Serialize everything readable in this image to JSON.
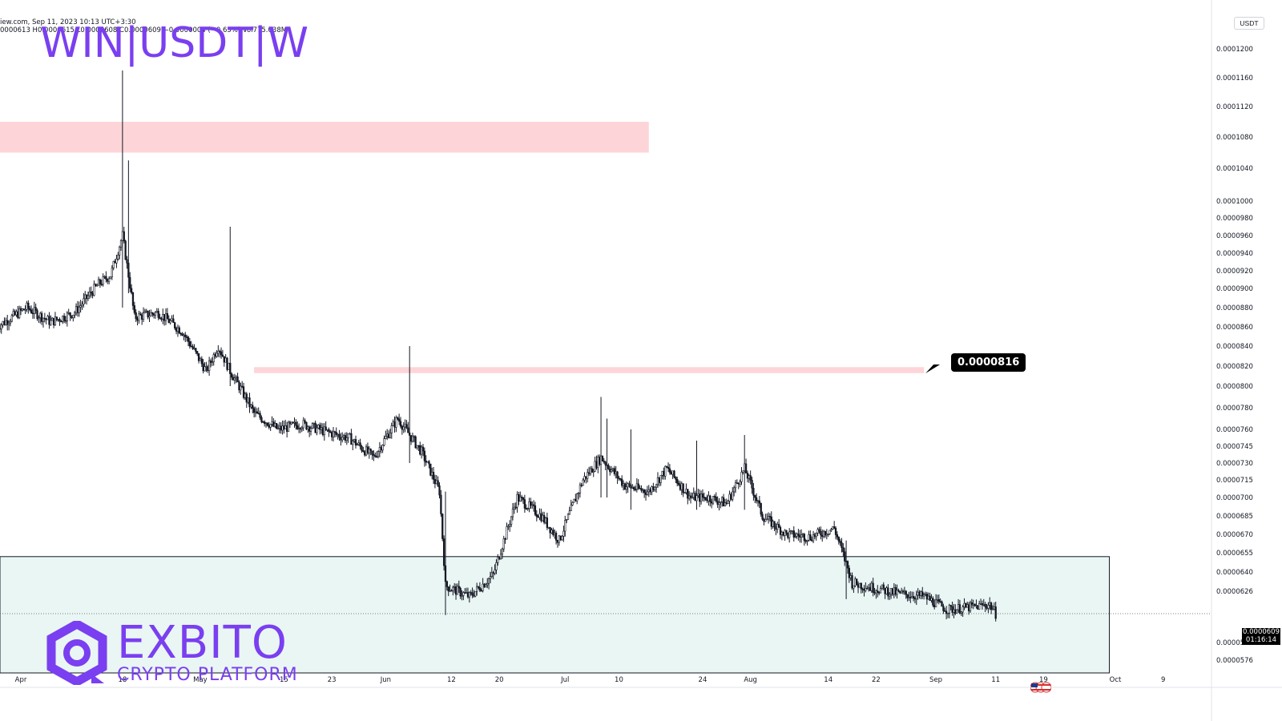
{
  "chart_data": {
    "type": "candlestick",
    "title": "WIN|USDT|W",
    "ohlc_header": "0000613  H0.0000615  L0.0000608  C0.0000609  −0.0000004 (−0.65%)  Vol775.038M",
    "source_header": "iew.com, Sep 11, 2023 10:13 UTC+3:30",
    "currency": "USDT",
    "y_tick_labels": [
      "0.0001200",
      "0.0001160",
      "0.0001120",
      "0.0001080",
      "0.0001040",
      "0.0001000",
      "0.0000980",
      "0.0000960",
      "0.0000940",
      "0.0000920",
      "0.0000900",
      "0.0000880",
      "0.0000860",
      "0.0000840",
      "0.0000820",
      "0.0000800",
      "0.0000780",
      "0.0000760",
      "0.0000745",
      "0.0000730",
      "0.0000715",
      "0.0000700",
      "0.0000685",
      "0.0000670",
      "0.0000655",
      "0.0000640",
      "0.0000626",
      "0.0000588",
      "0.0000576"
    ],
    "x_tick_labels": [
      "Apr",
      "10",
      "18",
      "May",
      "15",
      "23",
      "Jun",
      "12",
      "20",
      "Jul",
      "10",
      "24",
      "Aug",
      "14",
      "22",
      "Sep",
      "11",
      "19",
      "Oct",
      "9"
    ],
    "zones": [
      {
        "kind": "resistance",
        "y_from": 0.000106,
        "y_to": 0.00011,
        "x_from": "Mar 28",
        "x_to": "Jul 15",
        "color": "#fdd5d8"
      },
      {
        "kind": "resistance",
        "y_from": 8.13e-05,
        "y_to": 8.19e-05,
        "x_from": "May 10",
        "x_to": "Aug 30",
        "color": "#fdd5d8"
      },
      {
        "kind": "support",
        "y_from": 5.6e-05,
        "y_to": 6.52e-05,
        "x_from": "Mar 28",
        "x_to": "Sep 30",
        "color": "#e9f6f4"
      }
    ],
    "target_label": "0.0000816",
    "last_price": "0.0000609",
    "countdown": "01:16:14",
    "series": [
      {
        "anchors": [
          [
            "Mar 28",
            8.6e-05
          ],
          [
            "Apr 2",
            8.8e-05
          ],
          [
            "Apr 6",
            8.65e-05
          ],
          [
            "Apr 10",
            8.75e-05
          ],
          [
            "Apr 14",
            9.05e-05
          ],
          [
            "Apr 16",
            9.15e-05
          ],
          [
            "Apr 18",
            9.6e-05
          ],
          [
            "Apr 20",
            8.7e-05
          ],
          [
            "Apr 24",
            8.75e-05
          ],
          [
            "Apr 28",
            8.55e-05
          ],
          [
            "May 2",
            8.15e-05
          ],
          [
            "May 4",
            8.4e-05
          ],
          [
            "May 6",
            8.15e-05
          ],
          [
            "May 10",
            7.75e-05
          ],
          [
            "May 14",
            7.6e-05
          ],
          [
            "May 18",
            7.65e-05
          ],
          [
            "May 22",
            7.58e-05
          ],
          [
            "May 26",
            7.52e-05
          ],
          [
            "May 30",
            7.35e-05
          ],
          [
            "Jun 3",
            7.7e-05
          ],
          [
            "Jun 7",
            7.4e-05
          ],
          [
            "Jun 10",
            7.05e-05
          ],
          [
            "Jun 11",
            6.3e-05
          ],
          [
            "Jun 15",
            6.22e-05
          ],
          [
            "Jun 19",
            6.38e-05
          ],
          [
            "Jun 23",
            7e-05
          ],
          [
            "Jun 27",
            6.85e-05
          ],
          [
            "Jun 30",
            6.65e-05
          ],
          [
            "Jul 4",
            7.15e-05
          ],
          [
            "Jul 7",
            7.35e-05
          ],
          [
            "Jul 11",
            7.1e-05
          ],
          [
            "Jul 15",
            7.05e-05
          ],
          [
            "Jul 18",
            7.25e-05
          ],
          [
            "Jul 22",
            7e-05
          ],
          [
            "Jul 25",
            7e-05
          ],
          [
            "Jul 28",
            6.95e-05
          ],
          [
            "Jul 31",
            7.25e-05
          ],
          [
            "Aug 3",
            6.85e-05
          ],
          [
            "Aug 7",
            6.7e-05
          ],
          [
            "Aug 11",
            6.68e-05
          ],
          [
            "Aug 15",
            6.75e-05
          ],
          [
            "Aug 18",
            6.32e-05
          ],
          [
            "Aug 22",
            6.28e-05
          ],
          [
            "Aug 26",
            6.24e-05
          ],
          [
            "Aug 30",
            6.22e-05
          ],
          [
            "Sep 3",
            6.12e-05
          ],
          [
            "Sep 7",
            6.14e-05
          ],
          [
            "Sep 10",
            6.16e-05
          ],
          [
            "Sep 11",
            6.09e-05
          ]
        ],
        "spikes": [
          [
            "Apr 18",
            0.000117,
            8.8e-05
          ],
          [
            "Apr 19",
            0.000105,
            8.95e-05
          ],
          [
            "May 6",
            9.7e-05,
            8e-05
          ],
          [
            "Jun 5",
            8.4e-05,
            7.3e-05
          ],
          [
            "Jun 11",
            7.05e-05,
            6.08e-05
          ],
          [
            "Jul 7",
            7.9e-05,
            7e-05
          ],
          [
            "Jul 8",
            7.7e-05,
            7e-05
          ],
          [
            "Jul 12",
            7.6e-05,
            6.9e-05
          ],
          [
            "Jul 23",
            7.5e-05,
            6.9e-05
          ],
          [
            "Jul 31",
            7.55e-05,
            6.9e-05
          ],
          [
            "Aug 17",
            6.65e-05,
            6.2e-05
          ]
        ]
      }
    ]
  },
  "brand": {
    "name": "EXBITO",
    "tagline": "CRYPTO PLATFORM",
    "color": "#7a3ff0"
  },
  "colors": {
    "candle": "#131722",
    "resistance_zone": "#fdd5d8",
    "support_zone": "#e9f6f4"
  }
}
